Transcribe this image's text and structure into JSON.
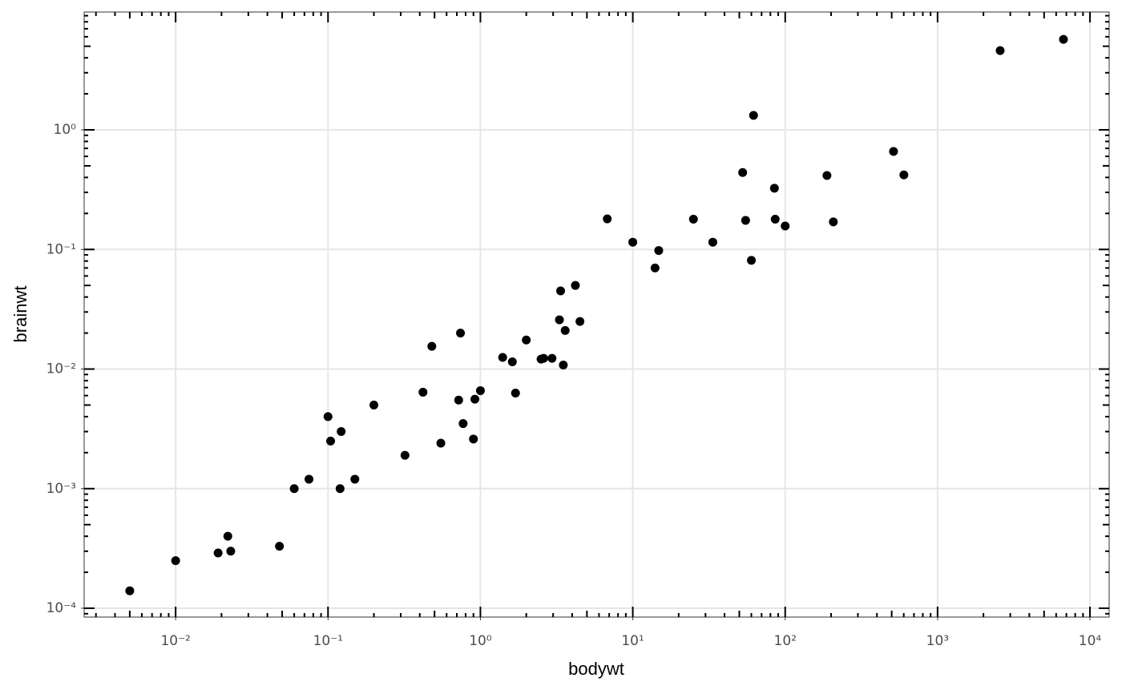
{
  "chart_data": {
    "type": "scatter",
    "x_label": "bodywt",
    "y_label": "brainwt",
    "log_x": true,
    "log_y": true,
    "grid": true,
    "logticks": true,
    "color": "#000000",
    "xlim": [
      0.00251,
      13370
    ],
    "ylim": [
      8.44e-05,
      9.66
    ],
    "xticks": [
      {
        "value": 0.01,
        "label": "10⁻²"
      },
      {
        "value": 0.1,
        "label": "10⁻¹"
      },
      {
        "value": 1,
        "label": "10⁰"
      },
      {
        "value": 10,
        "label": "10¹"
      },
      {
        "value": 100,
        "label": "10²"
      },
      {
        "value": 1000,
        "label": "10³"
      },
      {
        "value": 10000,
        "label": "10⁴"
      }
    ],
    "yticks": [
      {
        "value": 0.0001,
        "label": "10⁻⁴"
      },
      {
        "value": 0.001,
        "label": "10⁻³"
      },
      {
        "value": 0.01,
        "label": "10⁻²"
      },
      {
        "value": 0.1,
        "label": "10⁻¹"
      },
      {
        "value": 1,
        "label": "10⁰"
      }
    ],
    "x": [
      0.005,
      0.01,
      0.019,
      0.022,
      0.023,
      0.048,
      0.06,
      0.075,
      0.1,
      0.104,
      0.12,
      0.122,
      0.15,
      0.2,
      0.32,
      0.42,
      0.48,
      0.55,
      0.72,
      0.74,
      0.77,
      0.9,
      0.92,
      1.0,
      1.4,
      1.62,
      1.7,
      2.0,
      2.5,
      2.6,
      2.95,
      3.3,
      3.36,
      3.5,
      3.6,
      4.2,
      4.5,
      6.8,
      10,
      14,
      14.8,
      25,
      33.5,
      52.6,
      55,
      60,
      62,
      85,
      86,
      100,
      188,
      207,
      514,
      601,
      2575,
      6700
    ],
    "y": [
      0.00014,
      0.00025,
      0.00029,
      0.0004,
      0.0003,
      0.00033,
      0.001,
      0.0012,
      0.004,
      0.0025,
      0.001,
      0.003,
      0.0012,
      0.005,
      0.0019,
      0.0064,
      0.0155,
      0.0024,
      0.0055,
      0.02,
      0.0035,
      0.0026,
      0.0056,
      0.0066,
      0.0125,
      0.0115,
      0.0063,
      0.0175,
      0.0121,
      0.0123,
      0.0123,
      0.0258,
      0.045,
      0.0108,
      0.021,
      0.05,
      0.025,
      0.18,
      0.115,
      0.07,
      0.098,
      0.179,
      0.115,
      0.44,
      0.175,
      0.081,
      1.32,
      0.325,
      0.179,
      0.157,
      0.415,
      0.17,
      0.66,
      0.42,
      4.6,
      5.71
    ]
  }
}
